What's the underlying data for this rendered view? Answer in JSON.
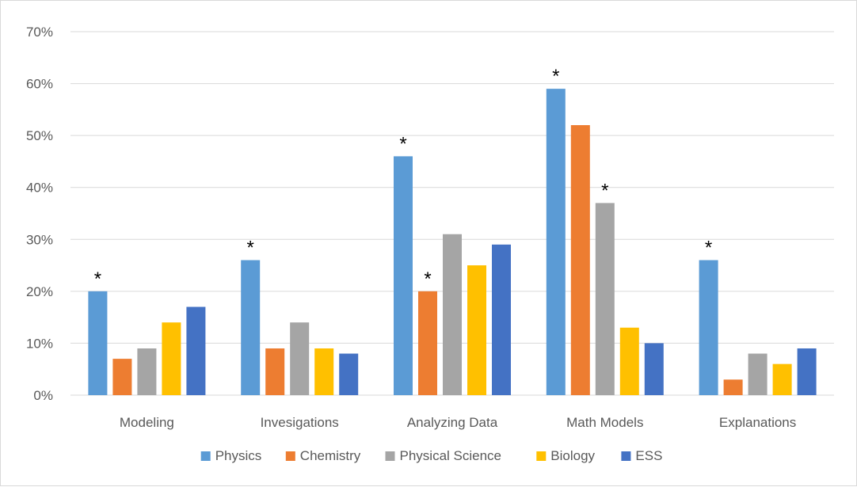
{
  "chart_data": {
    "type": "bar",
    "categories": [
      "Modeling",
      "Invesigations",
      "Analyzing Data",
      "Math Models",
      "Explanations"
    ],
    "series": [
      {
        "name": "Physics",
        "color": "#5b9bd5",
        "values": [
          20,
          26,
          46,
          59,
          26
        ]
      },
      {
        "name": "Chemistry",
        "color": "#ed7d31",
        "values": [
          7,
          9,
          20,
          52,
          3
        ]
      },
      {
        "name": "Physical Science",
        "color": "#a5a5a5",
        "values": [
          9,
          14,
          31,
          37,
          8
        ]
      },
      {
        "name": "Biology",
        "color": "#ffc000",
        "values": [
          14,
          9,
          25,
          13,
          6
        ]
      },
      {
        "name": "ESS",
        "color": "#4472c4",
        "values": [
          17,
          8,
          29,
          10,
          9
        ]
      }
    ],
    "y_ticks": [
      "0%",
      "10%",
      "20%",
      "30%",
      "40%",
      "50%",
      "60%",
      "70%"
    ],
    "ylim": [
      0,
      70
    ],
    "y_unit": "%",
    "grid": true,
    "legend_position": "bottom",
    "significance_marker": "*",
    "significant": [
      {
        "category": "Modeling",
        "series": "Physics"
      },
      {
        "category": "Invesigations",
        "series": "Physics"
      },
      {
        "category": "Analyzing Data",
        "series": "Physics"
      },
      {
        "category": "Analyzing Data",
        "series": "Chemistry"
      },
      {
        "category": "Math Models",
        "series": "Physics"
      },
      {
        "category": "Math Models",
        "series": "Physical Science"
      },
      {
        "category": "Explanations",
        "series": "Physics"
      }
    ]
  }
}
